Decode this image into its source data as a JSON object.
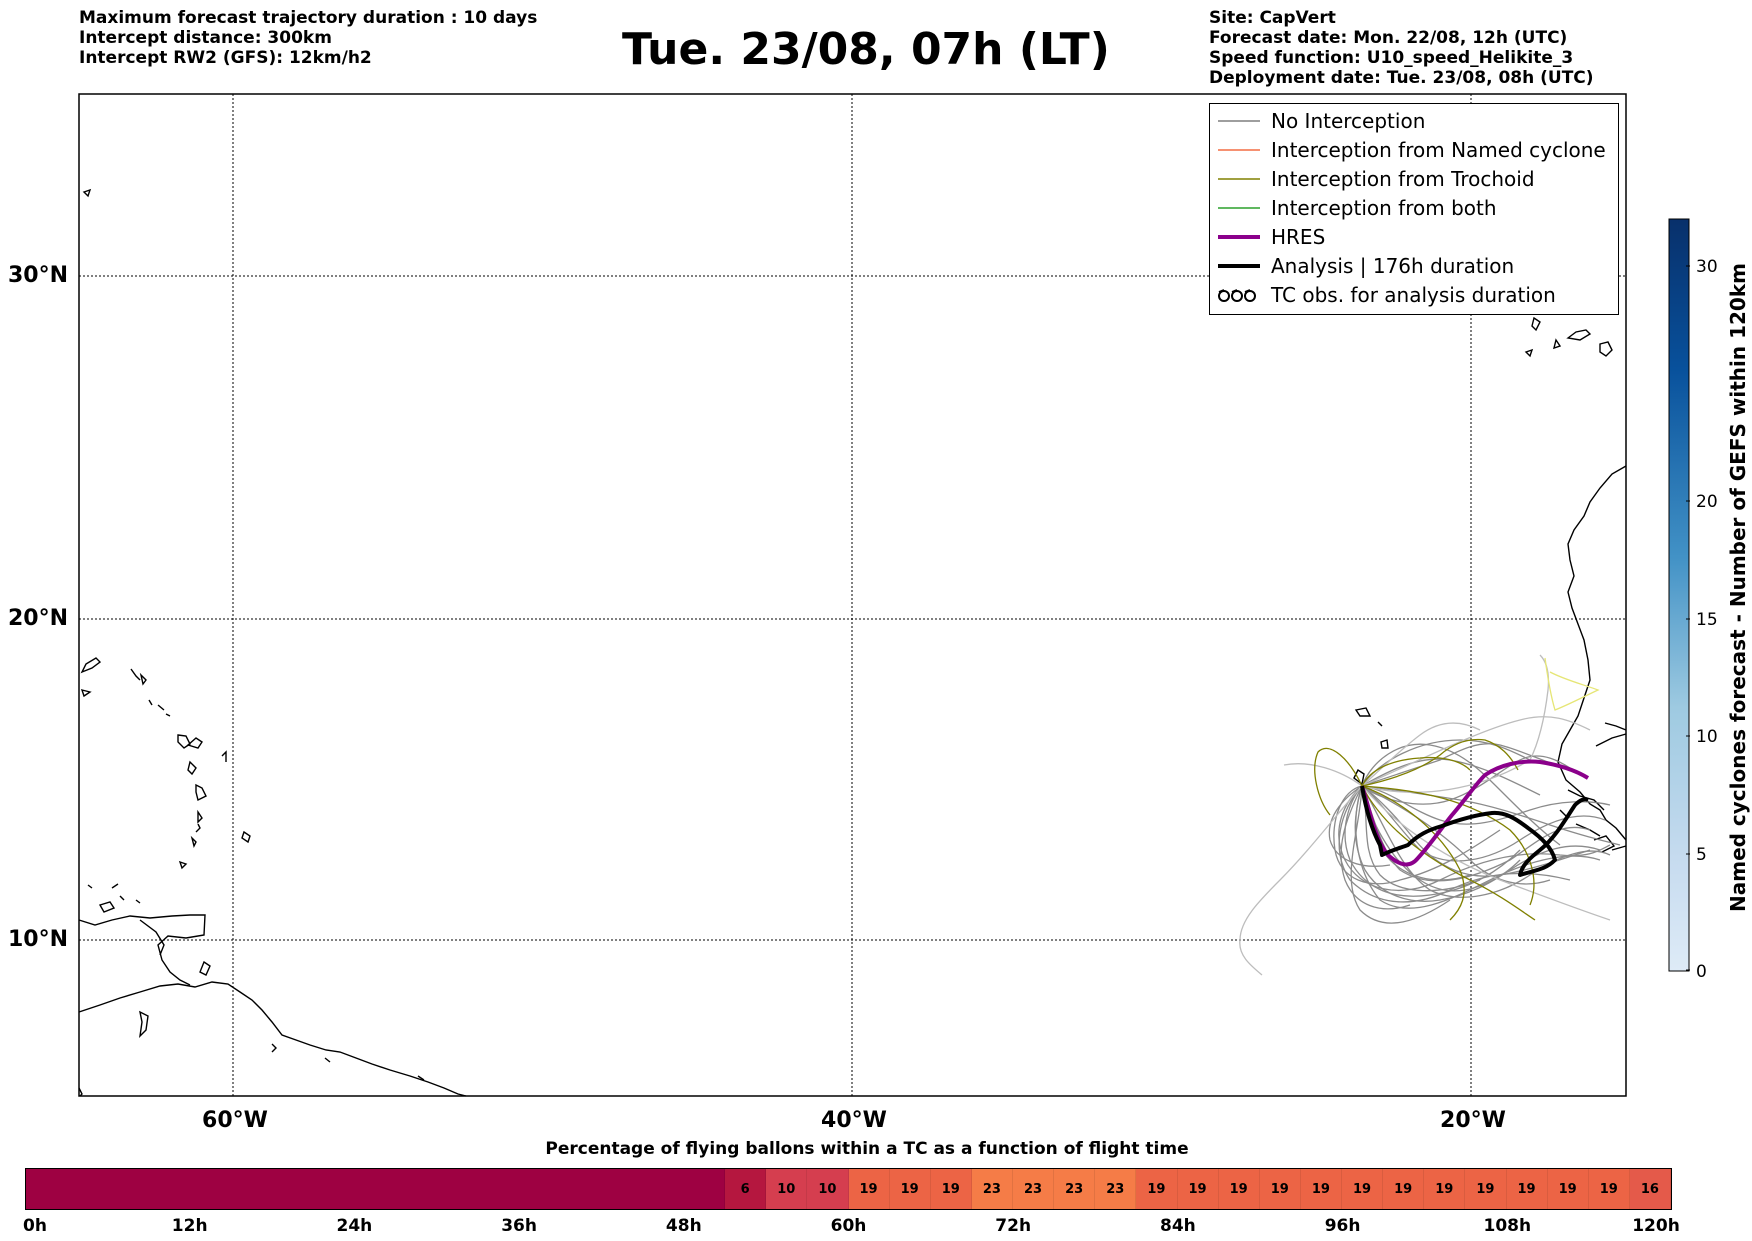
{
  "header": {
    "left_lines": [
      "Maximum forecast trajectory duration : 10 days",
      "Intercept distance: 300km",
      "Intercept RW2 (GFS):  12km/h2"
    ],
    "title": "Tue. 23/08, 07h (LT)",
    "right_lines": [
      "Site: CapVert",
      "Forecast date: Mon. 22/08, 12h (UTC)",
      "Speed function: U10_speed_Helikite_3",
      "Deployment date: Tue. 23/08, 08h (UTC)"
    ]
  },
  "map": {
    "lat_labels": [
      "30°N",
      "20°N",
      "10°N"
    ],
    "lon_labels": [
      "60°W",
      "40°W",
      "20°W"
    ]
  },
  "legend": {
    "items": [
      {
        "label": "No Interception",
        "color": "#7f7f7f",
        "style": "thin"
      },
      {
        "label": "Interception from Named cyclone",
        "color": "#f46d43",
        "style": "thin"
      },
      {
        "label": "Interception from Trochoid",
        "color": "#808000",
        "style": "thin"
      },
      {
        "label": "Interception from both",
        "color": "#2ca02c",
        "style": "thin"
      },
      {
        "label": "HRES",
        "color": "#8b008b",
        "style": "thick"
      },
      {
        "label": "Analysis | 176h duration",
        "color": "#000000",
        "style": "thick"
      },
      {
        "label": "TC obs. for analysis duration",
        "color": "#000000",
        "style": "symbol"
      }
    ]
  },
  "colorbar": {
    "label": "Named cyclones forecast - Number of GEFS within 120km",
    "ticks": [
      "0",
      "5",
      "10",
      "15",
      "20",
      "30"
    ]
  },
  "percentage_bar": {
    "title": "Percentage of flying ballons within a TC as a function of flight time",
    "time_labels": [
      "0h",
      "12h",
      "24h",
      "36h",
      "48h",
      "60h",
      "72h",
      "84h",
      "96h",
      "108h",
      "120h"
    ],
    "segments": [
      {
        "label": "",
        "color": "#9e0142",
        "span": 17
      },
      {
        "label": "6",
        "color": "#b5173f",
        "span": 1
      },
      {
        "label": "10",
        "color": "#d53e4f",
        "span": 1
      },
      {
        "label": "10",
        "color": "#d53e4f",
        "span": 1
      },
      {
        "label": "19",
        "color": "#ec6445",
        "span": 1
      },
      {
        "label": "19",
        "color": "#ec6445",
        "span": 1
      },
      {
        "label": "19",
        "color": "#ec6445",
        "span": 1
      },
      {
        "label": "23",
        "color": "#f57c47",
        "span": 1
      },
      {
        "label": "23",
        "color": "#f57c47",
        "span": 1
      },
      {
        "label": "23",
        "color": "#f57c47",
        "span": 1
      },
      {
        "label": "23",
        "color": "#f57c47",
        "span": 1
      },
      {
        "label": "19",
        "color": "#ec6445",
        "span": 1
      },
      {
        "label": "19",
        "color": "#ec6445",
        "span": 1
      },
      {
        "label": "19",
        "color": "#ec6445",
        "span": 1
      },
      {
        "label": "19",
        "color": "#ec6445",
        "span": 1
      },
      {
        "label": "19",
        "color": "#ec6445",
        "span": 1
      },
      {
        "label": "19",
        "color": "#ec6445",
        "span": 1
      },
      {
        "label": "19",
        "color": "#ec6445",
        "span": 1
      },
      {
        "label": "19",
        "color": "#ec6445",
        "span": 1
      },
      {
        "label": "19",
        "color": "#ec6445",
        "span": 1
      },
      {
        "label": "19",
        "color": "#ec6445",
        "span": 1
      },
      {
        "label": "19",
        "color": "#ec6445",
        "span": 1
      },
      {
        "label": "19",
        "color": "#ec6445",
        "span": 1
      },
      {
        "label": "16",
        "color": "#e45a4a",
        "span": 1
      }
    ]
  }
}
